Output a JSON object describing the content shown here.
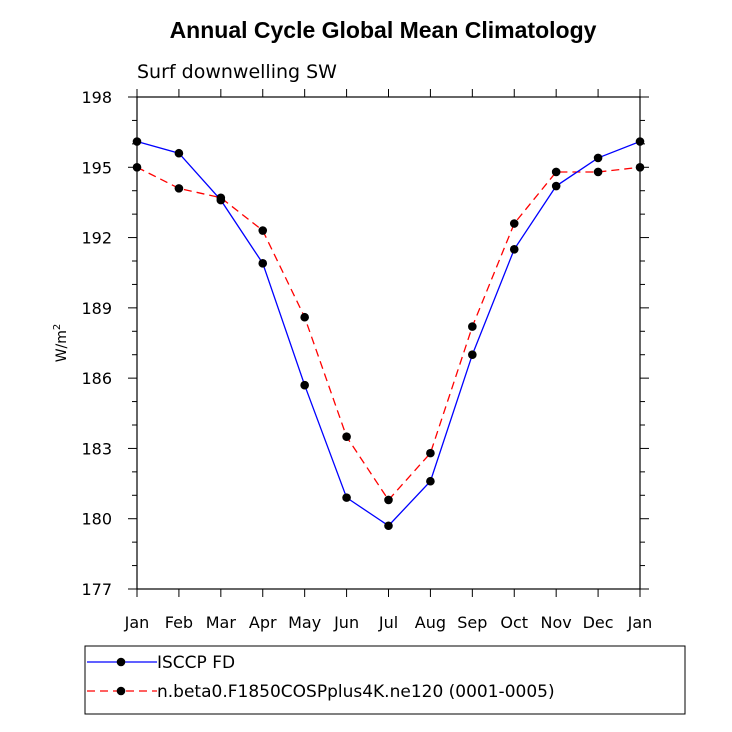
{
  "chart_data": {
    "type": "line",
    "title": "Annual Cycle Global Mean Climatology",
    "subtitle": "Surf downwelling SW",
    "xlabel": "",
    "ylabel": "W/m",
    "ylabel_superscript": "2",
    "categories": [
      "Jan",
      "Feb",
      "Mar",
      "Apr",
      "May",
      "Jun",
      "Jul",
      "Aug",
      "Sep",
      "Oct",
      "Nov",
      "Dec",
      "Jan"
    ],
    "ylim": [
      177,
      198
    ],
    "yticks": [
      177,
      180,
      183,
      186,
      189,
      192,
      195,
      198
    ],
    "grid": false,
    "legend_position": "bottom",
    "series": [
      {
        "name": "ISCCP FD",
        "color": "#0000ff",
        "dash": "solid",
        "marker": "filled-circle",
        "values": [
          196.1,
          195.6,
          193.6,
          190.9,
          185.7,
          180.9,
          179.7,
          181.6,
          187.0,
          191.5,
          194.2,
          195.4,
          196.1
        ]
      },
      {
        "name": "n.beta0.F1850COSPplus4K.ne120 (0001-0005)",
        "color": "#ff0000",
        "dash": "dashed",
        "marker": "filled-circle",
        "values": [
          195.0,
          194.1,
          193.7,
          192.3,
          188.6,
          183.5,
          180.8,
          182.8,
          188.2,
          192.6,
          194.8,
          194.8,
          195.0
        ]
      }
    ]
  }
}
